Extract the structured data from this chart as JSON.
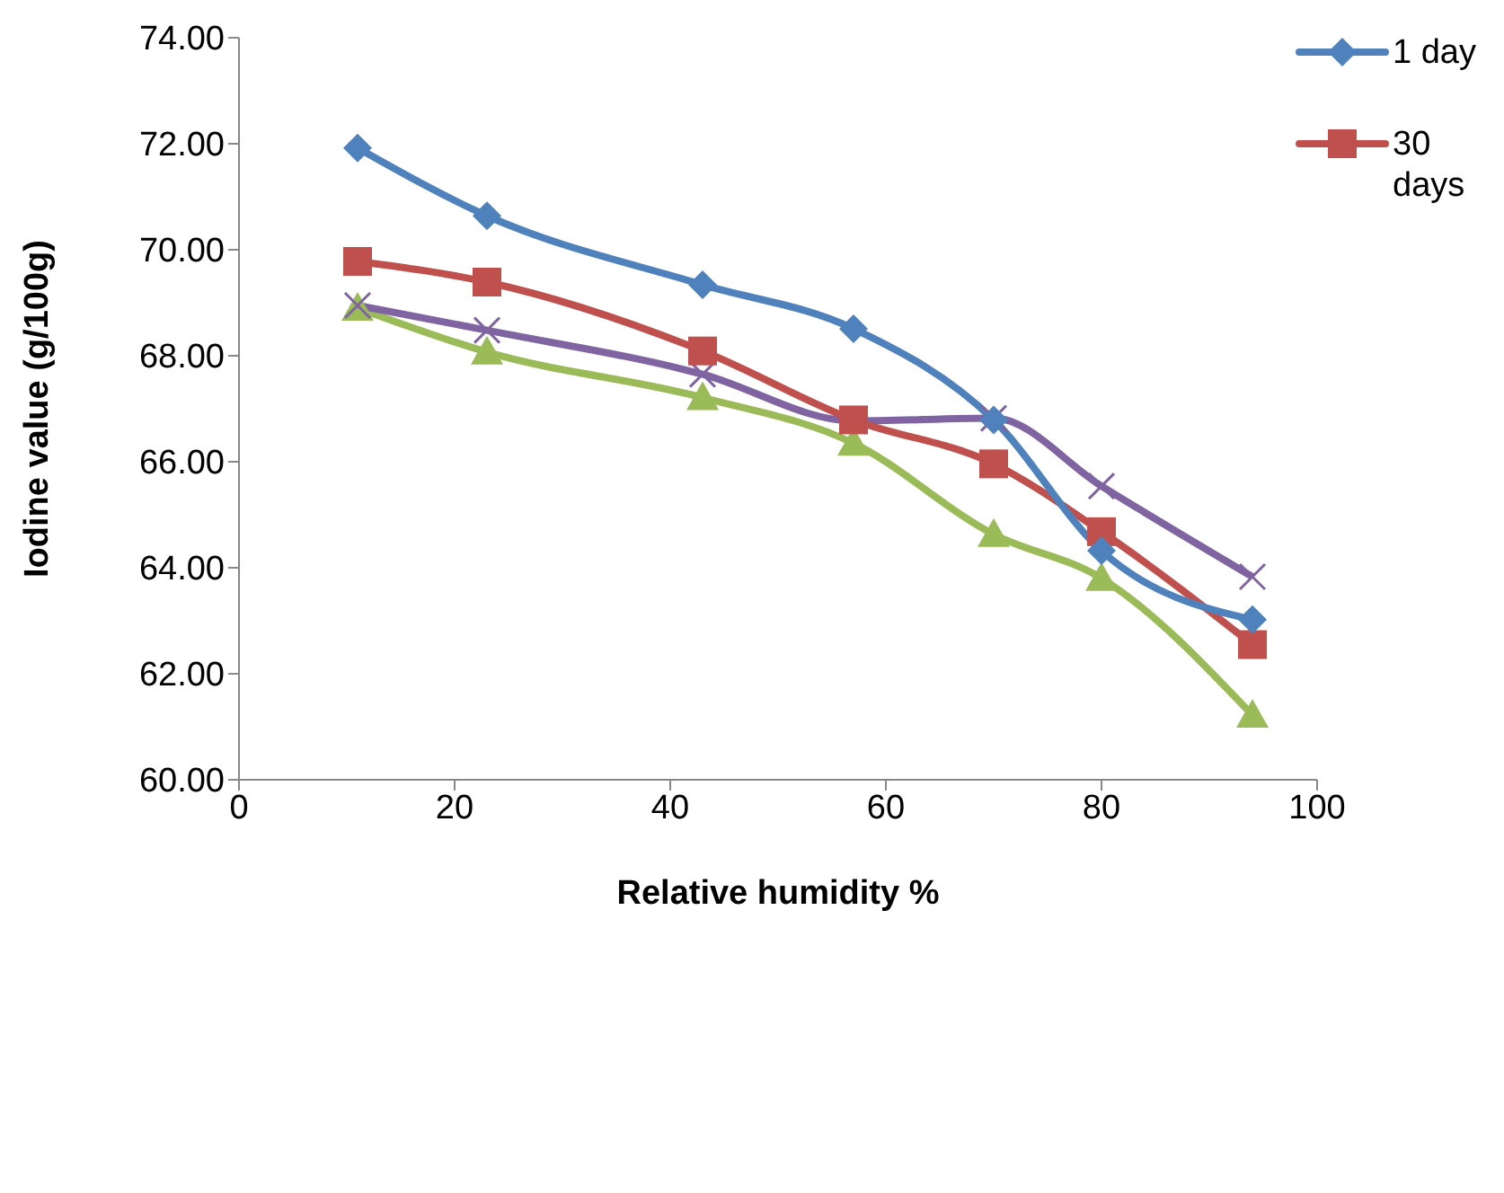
{
  "chart_data": {
    "type": "line",
    "xlabel": "Relative humidity %",
    "ylabel": "Iodine value (g/100g)",
    "x": [
      11,
      23,
      43,
      57,
      70,
      80,
      94
    ],
    "series": [
      {
        "name": "1 day",
        "color": "#4f81bd",
        "marker": "diamond",
        "values": [
          71.92,
          70.64,
          69.34,
          68.51,
          66.79,
          64.32,
          63.02
        ]
      },
      {
        "name": "30 days",
        "color": "#c0504d",
        "marker": "square",
        "values": [
          69.78,
          69.39,
          68.09,
          66.79,
          65.96,
          64.68,
          62.55
        ]
      },
      {
        "color": "#8064a2",
        "marker": "cross",
        "values": [
          68.95,
          68.48,
          67.65,
          66.77,
          66.82,
          65.54,
          63.83
        ]
      },
      {
        "color": "#9bbb59",
        "marker": "triangle",
        "values": [
          68.9,
          68.07,
          67.21,
          66.35,
          64.63,
          63.8,
          61.22
        ]
      }
    ],
    "xlim": [
      0,
      100
    ],
    "xticks": [
      0,
      20,
      40,
      60,
      80,
      100
    ],
    "ylim": [
      60,
      74
    ],
    "yticks": [
      {
        "value": 60,
        "label": "60.00"
      },
      {
        "value": 62,
        "label": "62.00"
      },
      {
        "value": 64,
        "label": "64.00"
      },
      {
        "value": 66,
        "label": "66.00"
      },
      {
        "value": 68,
        "label": "68.00"
      },
      {
        "value": 70,
        "label": "70.00"
      },
      {
        "value": 72,
        "label": "72.00"
      },
      {
        "value": 74,
        "label": "74.00"
      }
    ],
    "grid": false,
    "legend": "top right",
    "line_style": "solid"
  }
}
